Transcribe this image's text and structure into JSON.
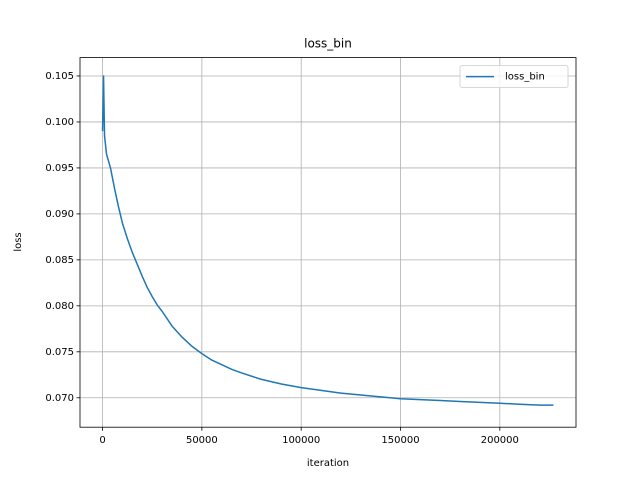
{
  "chart_data": {
    "type": "line",
    "title": "loss_bin",
    "xlabel": "iteration",
    "ylabel": "loss",
    "x": [
      0,
      500,
      1000,
      2000,
      4000,
      6000,
      8000,
      10000,
      12500,
      15000,
      17500,
      20000,
      22500,
      25000,
      27500,
      30000,
      35000,
      40000,
      45000,
      50000,
      55000,
      60000,
      65000,
      70000,
      80000,
      90000,
      100000,
      110000,
      120000,
      130000,
      140000,
      150000,
      160000,
      170000,
      180000,
      190000,
      200000,
      210000,
      220000,
      227000
    ],
    "series": [
      {
        "name": "loss_bin",
        "color": "#1f77b4",
        "values": [
          0.099,
          0.105,
          0.0985,
          0.0965,
          0.095,
          0.0928,
          0.0908,
          0.089,
          0.0873,
          0.0858,
          0.0845,
          0.0832,
          0.082,
          0.081,
          0.0801,
          0.0794,
          0.0778,
          0.0766,
          0.0756,
          0.0748,
          0.0741,
          0.0736,
          0.0731,
          0.0727,
          0.072,
          0.0715,
          0.0711,
          0.0708,
          0.0705,
          0.0703,
          0.0701,
          0.0699,
          0.0698,
          0.0697,
          0.0696,
          0.0695,
          0.0694,
          0.0693,
          0.0692,
          0.0692
        ]
      }
    ],
    "xlim": [
      -11350,
      238350
    ],
    "ylim": [
      0.0668,
      0.107
    ],
    "xticks": [
      0,
      50000,
      100000,
      150000,
      200000
    ],
    "yticks": [
      {
        "value": 0.07,
        "label": "0.070"
      },
      {
        "value": 0.075,
        "label": "0.075"
      },
      {
        "value": 0.08,
        "label": "0.080"
      },
      {
        "value": 0.085,
        "label": "0.085"
      },
      {
        "value": 0.09,
        "label": "0.090"
      },
      {
        "value": 0.095,
        "label": "0.095"
      },
      {
        "value": 0.1,
        "label": "0.100"
      },
      {
        "value": 0.105,
        "label": "0.105"
      }
    ],
    "grid": true,
    "legend": "upper-right"
  }
}
